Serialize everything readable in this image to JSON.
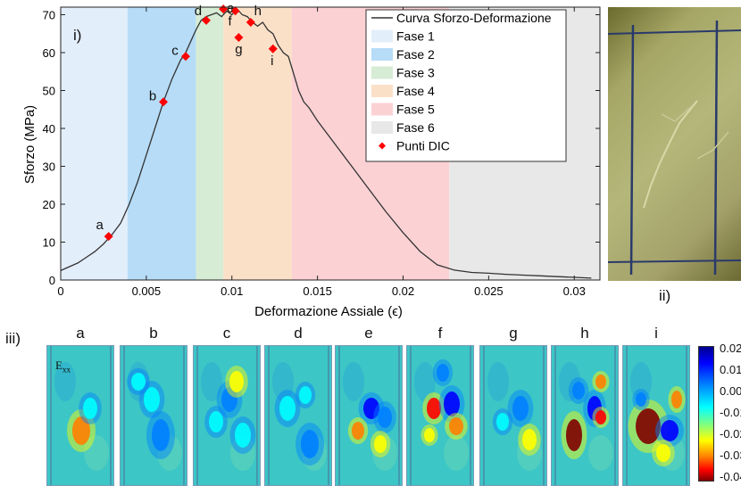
{
  "panels": {
    "i": "i)",
    "ii": "ii)",
    "iii": "iii)"
  },
  "chart_data": {
    "type": "line",
    "xlabel": "Deformazione Assiale (ϵ)",
    "ylabel": "Sforzo (MPa)",
    "xlim": [
      0,
      0.0315
    ],
    "ylim": [
      0,
      72
    ],
    "xticks": [
      0,
      0.005,
      0.01,
      0.015,
      0.02,
      0.025,
      0.03
    ],
    "xtick_labels": [
      "0",
      "0.005",
      "0.01",
      "0.015",
      "0.02",
      "0.025",
      "0.03"
    ],
    "yticks": [
      0,
      10,
      20,
      30,
      40,
      50,
      60,
      70
    ],
    "ytick_labels": [
      "0",
      "10",
      "20",
      "30",
      "40",
      "50",
      "60",
      "70"
    ],
    "grid": false,
    "legend_position": "top-right",
    "phases": [
      {
        "name": "Fase 1",
        "x0": 0.0,
        "x1": 0.0039,
        "color": "#e3eefb"
      },
      {
        "name": "Fase 2",
        "x0": 0.0039,
        "x1": 0.0079,
        "color": "#b6dcf7"
      },
      {
        "name": "Fase 3",
        "x0": 0.0079,
        "x1": 0.0095,
        "color": "#d6ecd4"
      },
      {
        "name": "Fase 4",
        "x0": 0.0095,
        "x1": 0.0135,
        "color": "#fbe0c8"
      },
      {
        "name": "Fase 5",
        "x0": 0.0135,
        "x1": 0.0227,
        "color": "#fbd1d4"
      },
      {
        "name": "Fase 6",
        "x0": 0.0227,
        "x1": 0.0315,
        "color": "#e8e8e8"
      }
    ],
    "series": [
      {
        "name": "Curva Sforzo-Deformazione",
        "color": "#333333",
        "x": [
          0,
          0.0005,
          0.001,
          0.0015,
          0.002,
          0.0025,
          0.003,
          0.0035,
          0.004,
          0.0045,
          0.005,
          0.0055,
          0.006,
          0.0065,
          0.007,
          0.0073,
          0.0076,
          0.0079,
          0.0082,
          0.0085,
          0.0088,
          0.0091,
          0.0094,
          0.0097,
          0.01,
          0.0103,
          0.0106,
          0.0109,
          0.0112,
          0.0115,
          0.0118,
          0.0121,
          0.0124,
          0.0127,
          0.013,
          0.0133,
          0.0135,
          0.0137,
          0.0139,
          0.0142,
          0.0145,
          0.015,
          0.016,
          0.017,
          0.018,
          0.019,
          0.02,
          0.021,
          0.022,
          0.023,
          0.024,
          0.025,
          0.026,
          0.027,
          0.028,
          0.029,
          0.03,
          0.031
        ],
        "y": [
          2.5,
          3.5,
          4.5,
          6,
          7.5,
          9.5,
          12,
          15,
          20,
          26,
          33,
          40,
          47,
          53,
          58,
          60,
          63,
          66,
          68.5,
          69.5,
          70,
          70.5,
          69.5,
          71,
          70,
          71.5,
          70,
          69.5,
          68,
          67,
          68,
          66,
          65,
          62,
          60,
          59,
          56,
          53,
          50,
          47,
          45.5,
          42,
          36,
          30,
          24,
          18,
          12.5,
          7.5,
          4,
          2.6,
          2,
          1.8,
          1.5,
          1.3,
          1.1,
          0.9,
          0.7,
          0.5
        ]
      }
    ],
    "dic_points": {
      "name": "Punti DIC",
      "color": "#ff0000",
      "points": [
        {
          "label": "a",
          "x": 0.0028,
          "y": 11.5
        },
        {
          "label": "b",
          "x": 0.006,
          "y": 47
        },
        {
          "label": "c",
          "x": 0.0073,
          "y": 59
        },
        {
          "label": "d",
          "x": 0.0085,
          "y": 68.5
        },
        {
          "label": "e",
          "x": 0.0095,
          "y": 71.5
        },
        {
          "label": "f",
          "x": 0.0102,
          "y": 71
        },
        {
          "label": "g",
          "x": 0.0104,
          "y": 64
        },
        {
          "label": "h",
          "x": 0.0111,
          "y": 68
        },
        {
          "label": "i",
          "x": 0.0124,
          "y": 61
        }
      ]
    }
  },
  "dic_maps": {
    "field_label": "E",
    "field_sub": "xx",
    "letters": [
      "a",
      "b",
      "c",
      "d",
      "e",
      "f",
      "g",
      "h",
      "i"
    ],
    "colorbar_ticks": [
      "0.02",
      "0.01",
      "0.00",
      "-0.01",
      "-0.02",
      "-0.03",
      "-0.04"
    ],
    "colormap": [
      "#00008f",
      "#0000ff",
      "#0080ff",
      "#00ffff",
      "#80ff80",
      "#ffff00",
      "#ff8000",
      "#ff0000",
      "#800000"
    ]
  }
}
